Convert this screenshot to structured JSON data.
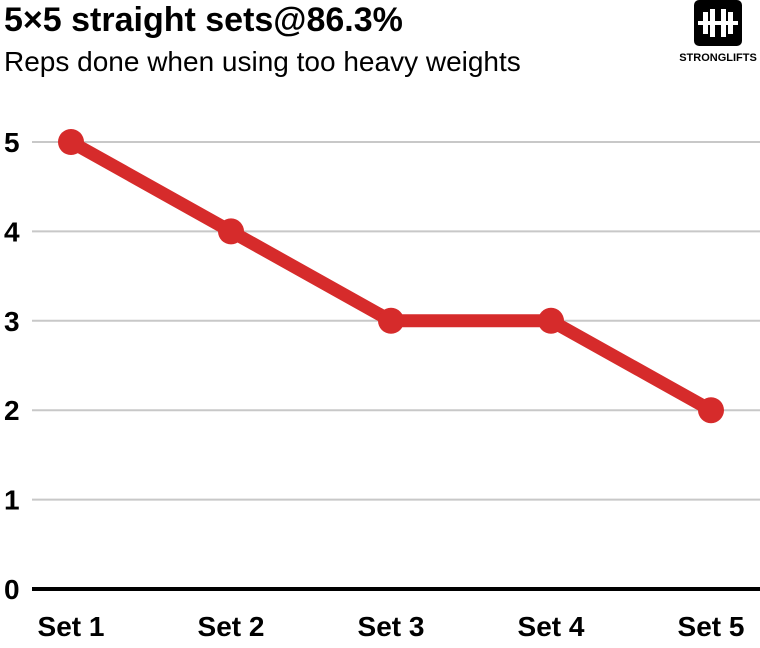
{
  "header": {
    "title": "5×5 straight sets@86.3%",
    "subtitle": "Reps done when using too heavy weights"
  },
  "logo": {
    "icon": "barbell-icon",
    "text": "STRONGLIFTS"
  },
  "colors": {
    "series": "#d62b2b",
    "grid": "#c8c8c8",
    "axis": "#000000"
  },
  "chart_data": {
    "type": "line",
    "title": "5×5 straight sets@86.3%",
    "subtitle": "Reps done when using too heavy weights",
    "categories": [
      "Set 1",
      "Set 2",
      "Set 3",
      "Set 4",
      "Set 5"
    ],
    "series": [
      {
        "values": [
          5,
          4,
          3,
          3,
          2
        ]
      }
    ],
    "yticks": [
      0,
      1,
      2,
      3,
      4,
      5
    ],
    "ylim": [
      0,
      5
    ],
    "xlabel": "",
    "ylabel": "",
    "grid": true,
    "legend": "none"
  }
}
